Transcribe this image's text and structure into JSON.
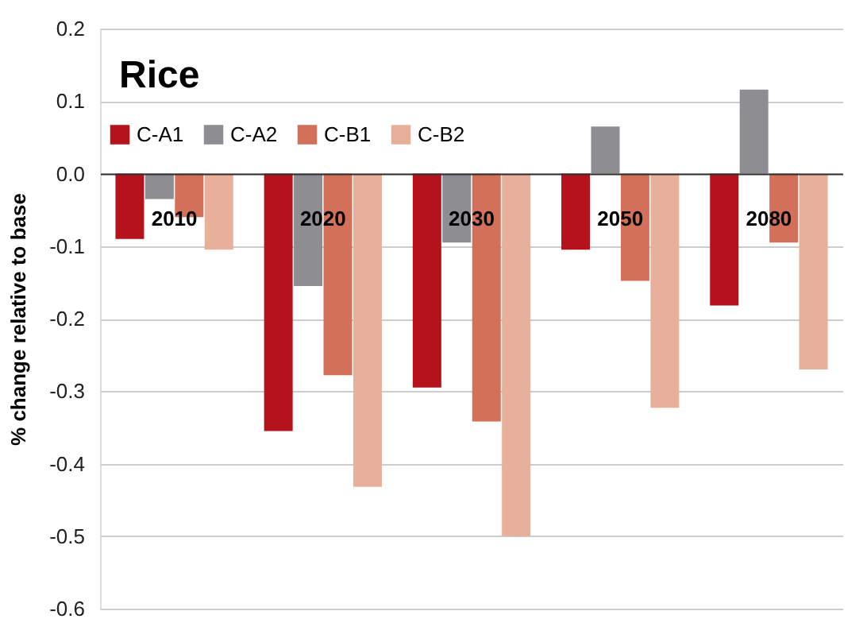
{
  "chart_data": {
    "type": "bar",
    "title": "Rice",
    "ylabel": "% change relative to base",
    "categories": [
      "2010",
      "2020",
      "2030",
      "2050",
      "2080"
    ],
    "series": [
      {
        "name": "C-A1",
        "color": "#b5121b",
        "values": [
          -0.09,
          -0.355,
          -0.295,
          -0.105,
          -0.182
        ]
      },
      {
        "name": "C-A2",
        "color": "#8e8d92",
        "values": [
          -0.035,
          -0.155,
          -0.095,
          0.065,
          0.116
        ]
      },
      {
        "name": "C-B1",
        "color": "#d2705a",
        "values": [
          -0.06,
          -0.278,
          -0.342,
          -0.148,
          -0.095
        ]
      },
      {
        "name": "C-B2",
        "color": "#e8b09b",
        "values": [
          -0.105,
          -0.432,
          -0.5,
          -0.323,
          -0.27
        ]
      }
    ],
    "ylim": [
      -0.6,
      0.2
    ],
    "yticks": [
      {
        "value": -0.6,
        "label": "-0.6"
      },
      {
        "value": -0.5,
        "label": "-0.5"
      },
      {
        "value": -0.4,
        "label": "-0.4"
      },
      {
        "value": -0.3,
        "label": "-0.3"
      },
      {
        "value": -0.2,
        "label": "-0.2"
      },
      {
        "value": -0.1,
        "label": "-0.1"
      },
      {
        "value": 0,
        "label": "0.0"
      },
      {
        "value": 0.1,
        "label": "0.1"
      },
      {
        "value": 0.2,
        "label": "0.2"
      }
    ],
    "grid": "y",
    "legend": "top left"
  }
}
